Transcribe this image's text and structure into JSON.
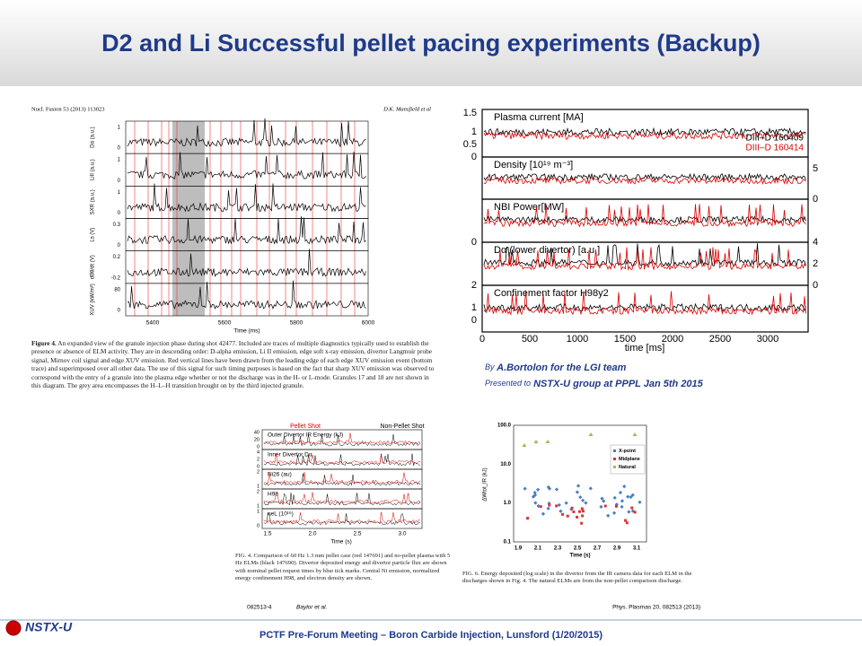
{
  "header": {
    "title": "D2 and Li Successful pellet pacing experiments (Backup)"
  },
  "fig1": {
    "journal": "Nucl. Fusion 53 (2013) 113023",
    "author": "D.K. Mansfield et al",
    "panels": [
      {
        "label": "Dα (a.u.)",
        "ticks": [
          "1",
          "0"
        ]
      },
      {
        "label": "LiII (a.u.)",
        "ticks": [
          "1",
          "0"
        ]
      },
      {
        "label": "SXR (a.u.)",
        "ticks": [
          "1",
          "0"
        ]
      },
      {
        "label": "Ls (V)",
        "ticks": [
          "0.3",
          "0"
        ]
      },
      {
        "label": "dBθ/dt (V)",
        "ticks": [
          "0.2",
          "-0.2"
        ]
      },
      {
        "label": "XUV (kW/m²)",
        "ticks": [
          "80",
          "0"
        ]
      }
    ],
    "xticks": [
      "5400",
      "5600",
      "5800",
      "6000"
    ],
    "xlabel": "Time (ms)",
    "caption_lead": "Figure 4.",
    "caption": "An expanded view of the granule injection phase during shot 42477. Included are traces of multiple diagnostics typically used to establish the presence or absence of ELM activity. They are in descending order: D-alpha emission, Li II emission, edge soft x-ray emission, divertor Langmuir probe signal, Mirnov coil signal and edge XUV emission. Red vertical lines have been drawn from the leading edge of each edge XUV emission event (bottom trace) and superimposed over all other data. The use of this signal for such timing purposes is based on the fact that sharp XUV emission was observed to correspond with the entry of a granule into the plasma edge whether or not the discharge was in the H- or L-mode. Granules 17 and 18 are not shown in this diagram. The grey area encompasses the H–L–H transition brought on by the third injected granule."
  },
  "fig2": {
    "panels": [
      {
        "label": "Plasma current [MA]",
        "left": [
          "1.5",
          "1",
          "0.5",
          "0"
        ],
        "right": []
      },
      {
        "label": "Density [10¹⁹ m⁻³]",
        "left": [],
        "right": [
          "5",
          "0"
        ]
      },
      {
        "label": "NBI Power[MW]",
        "left": [
          "0"
        ],
        "right": []
      },
      {
        "label": "Dα (lower divertor) [a.u.]",
        "left": [
          "2"
        ],
        "right": [
          "4",
          "2",
          "0"
        ]
      },
      {
        "label": "Confinement factor H98y2",
        "left": [
          "1",
          "0"
        ],
        "right": []
      }
    ],
    "legend": [
      "DIII–D 160409",
      "DIII–D 160414"
    ],
    "xticks": [
      "0",
      "500",
      "1000",
      "1500",
      "2000",
      "2500",
      "3000"
    ],
    "xlabel": "time [ms]"
  },
  "credit": {
    "by": "By",
    "by_name": "A.Bortolon for the LGI team",
    "presented": "Presented to",
    "presented_rest": "NSTX-U group at PPPL Jan 5th 2015"
  },
  "fig3": {
    "pellet": "Pellet Shot",
    "nonpellet": "Non-Pellet Shot",
    "panels": [
      {
        "label": "Outer Divertor IR Energy (kJ)",
        "ticks": [
          "40",
          "20",
          "0"
        ]
      },
      {
        "label": "Inner Divertor Dα",
        "ticks": [
          "4",
          "2",
          "0"
        ]
      },
      {
        "label": "Ni26 (au)",
        "ticks": [
          "2",
          "1"
        ]
      },
      {
        "label": "H98",
        "ticks": [
          "2",
          "1"
        ]
      },
      {
        "label": "neL (10¹⁶)",
        "ticks": [
          "1",
          "0"
        ]
      }
    ],
    "xticks": [
      "1.5",
      "2.0",
      "2.5",
      "3.0"
    ],
    "xlabel": "Time (s)",
    "caption": "FIG. 4. Comparison of 60 Hz 1.3 mm pellet case (red 147691) and no-pellet plasma with 5 Hz ELMs (black 147690). Divertor deposited energy and divertor particle flux are shown with nominal pellet request times by blue tick marks. Central Ni emission, normalized energy confinement H98, and electron density are shown.",
    "page": "082513-4",
    "authors": "Baylor et al."
  },
  "fig4": {
    "yticks": [
      "100.0",
      "10.0",
      "1.0",
      "0.1"
    ],
    "ylabel": "ΔWtot_IR (kJ)",
    "xticks": [
      "1.9",
      "2.1",
      "2.3",
      "2.5",
      "2.7",
      "2.9",
      "3.1"
    ],
    "xlabel": "Time (s)",
    "legend": [
      "X-point",
      "Midplane",
      "Natural"
    ],
    "caption": "FIG. 6. Energy deposited (log scale) in the divertor from the IR camera data for each ELM in the discharges shown in Fig. 4. The natural ELMs are from the non-pellet comparison discharge.",
    "journal": "Phys. Plasmas 20, 082513 (2013)"
  },
  "footer": {
    "logo": "NSTX-U",
    "meeting": "PCTF Pre-Forum Meeting – Boron Carbide Injection, Lunsford (1/20/2015)"
  }
}
